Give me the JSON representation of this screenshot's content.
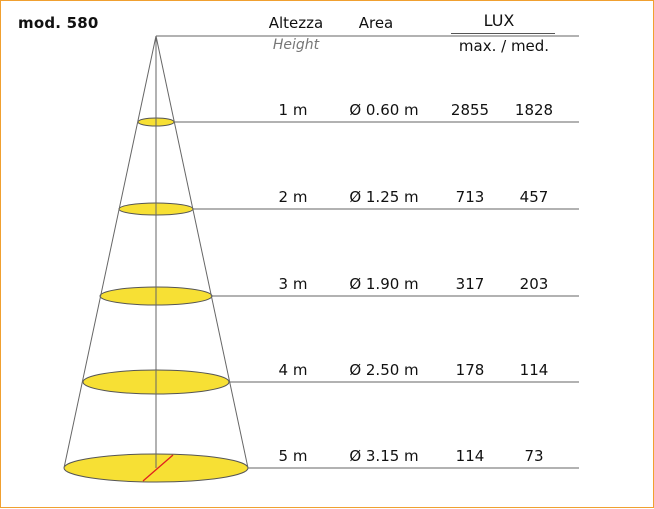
{
  "title": "mod. 580",
  "headers": {
    "height_it": "Altezza",
    "height_en": "Height",
    "area": "Area",
    "lux": "LUX",
    "lux_sub": "max. / med."
  },
  "rows": [
    {
      "height": "1 m",
      "diameter": "Ø 0.60 m",
      "lux_max": "2855",
      "lux_med": "1828"
    },
    {
      "height": "2 m",
      "diameter": "Ø 1.25 m",
      "lux_max": "713",
      "lux_med": "457"
    },
    {
      "height": "3 m",
      "diameter": "Ø 1.90 m",
      "lux_max": "317",
      "lux_med": "203"
    },
    {
      "height": "4 m",
      "diameter": "Ø 2.50 m",
      "lux_max": "178",
      "lux_med": "114"
    },
    {
      "height": "5 m",
      "diameter": "Ø 3.15 m",
      "lux_max": "114",
      "lux_med": "73"
    }
  ],
  "colors": {
    "frame": "#f0a030",
    "ellipse_fill": "#f7e034",
    "ellipse_stroke": "#555555",
    "line": "#666666",
    "radius_marker": "#e02020"
  }
}
